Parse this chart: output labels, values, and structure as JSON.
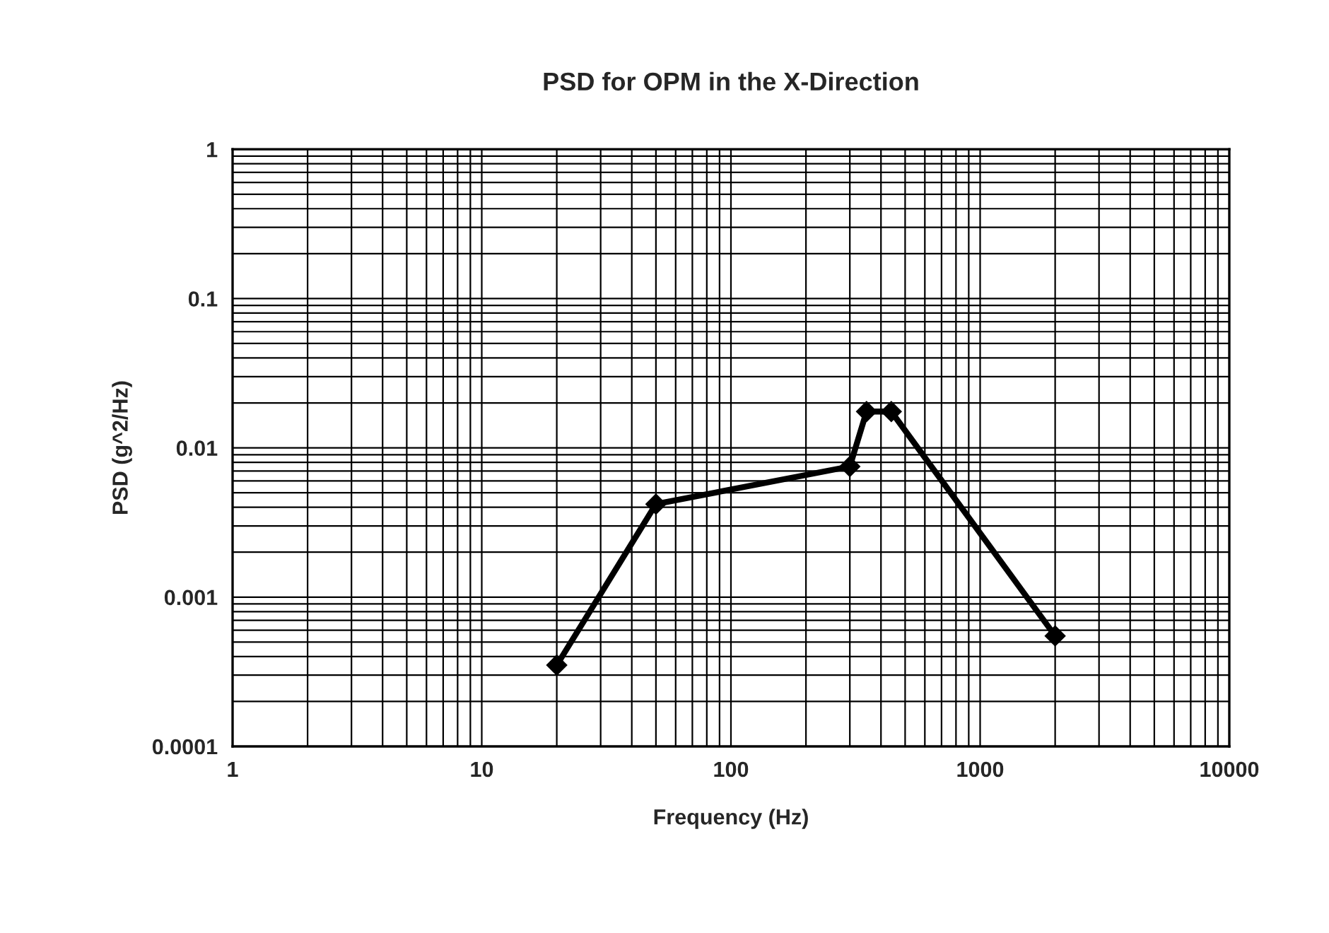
{
  "chart_data": {
    "type": "line",
    "title": "PSD for OPM in the X-Direction",
    "xlabel": "Frequency (Hz)",
    "ylabel": "PSD (g^2/Hz)",
    "x": [
      20,
      50,
      300,
      350,
      440,
      2000
    ],
    "series": [
      {
        "color": "#000000",
        "values": [
          0.00035,
          0.0042,
          0.0075,
          0.0175,
          0.0175,
          0.00055
        ]
      }
    ],
    "log": "xy",
    "xlim": [
      1,
      10000
    ],
    "xticks": [
      1,
      10,
      100,
      1000,
      10000
    ],
    "ylim": [
      0.0001,
      1
    ],
    "yticks": [
      0.0001,
      0.001,
      0.01,
      0.1,
      1
    ],
    "grid": true,
    "marker": "diamond",
    "line_style": "solid"
  }
}
